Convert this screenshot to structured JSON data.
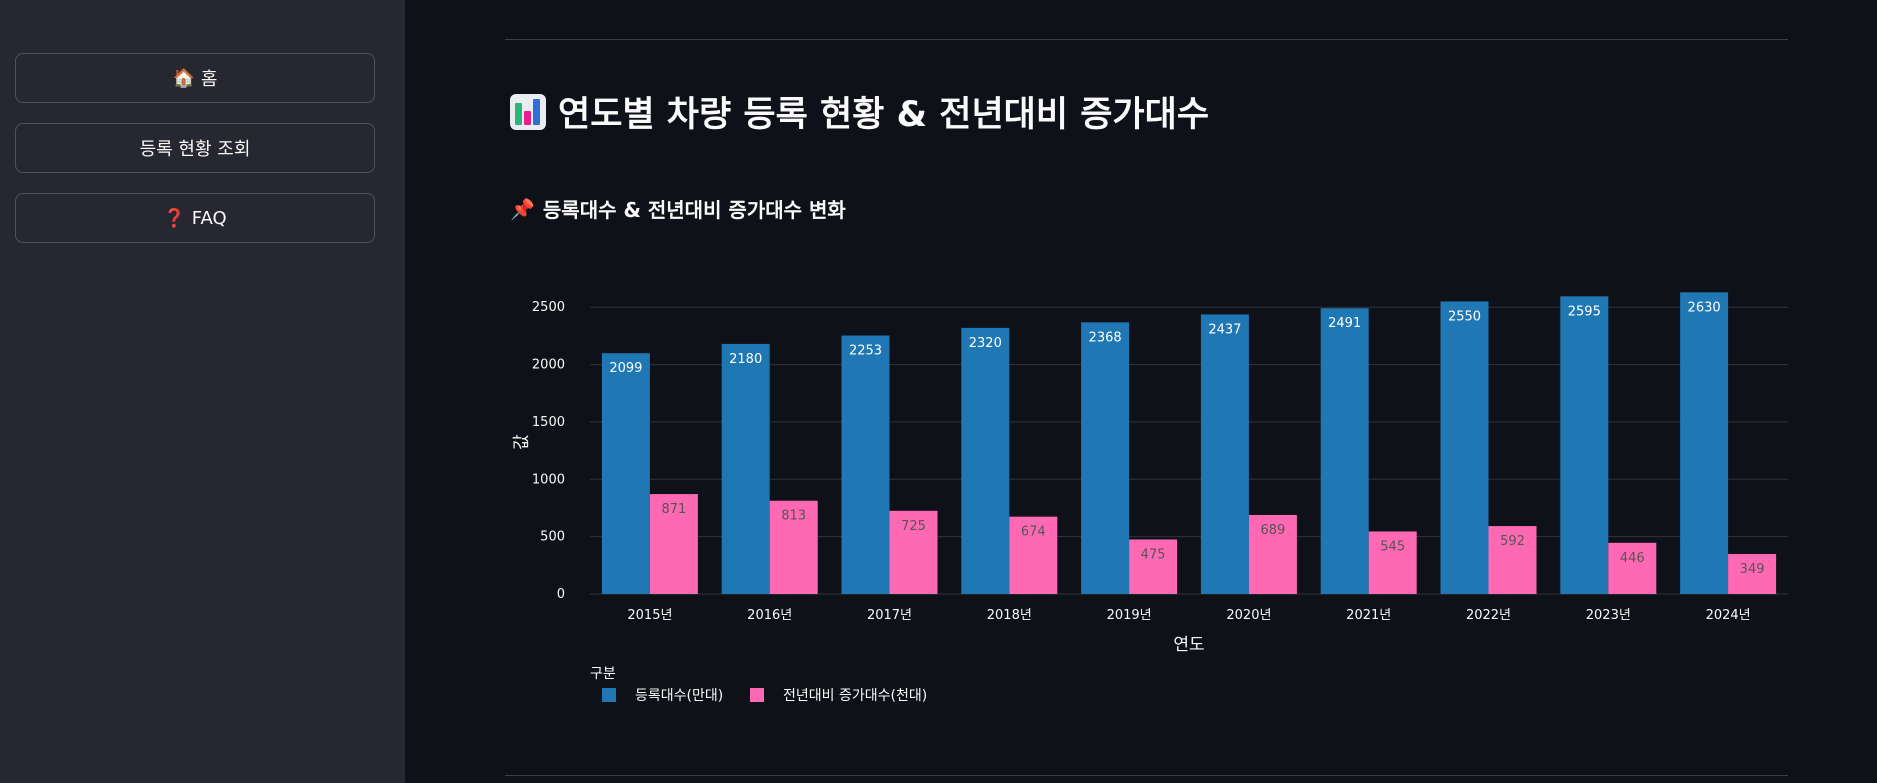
{
  "sidebar": {
    "items": [
      {
        "icon": "house-icon",
        "emoji": "🏠",
        "label": "홈"
      },
      {
        "icon": "",
        "emoji": "",
        "label": "등록 현황 조회"
      },
      {
        "icon": "question-mark-icon",
        "emoji": "❓",
        "label": "FAQ"
      }
    ]
  },
  "page": {
    "title": "연도별 차량 등록 현황 & 전년대비 증가대수",
    "title_icon": "bar-chart-icon",
    "section_title": "등록대수 & 전년대비 증가대수 변화",
    "section_icon": "pushpin-icon"
  },
  "colors": {
    "background": "#0e1117",
    "sidebar": "#262730",
    "series_registered": "#1f77b4",
    "series_increase": "#ff69b4"
  },
  "chart_data": {
    "type": "bar",
    "categories": [
      "2015년",
      "2016년",
      "2017년",
      "2018년",
      "2019년",
      "2020년",
      "2021년",
      "2022년",
      "2023년",
      "2024년"
    ],
    "series": [
      {
        "name": "등록대수(만대)",
        "values": [
          2099,
          2180,
          2253,
          2320,
          2368,
          2437,
          2491,
          2550,
          2595,
          2630
        ]
      },
      {
        "name": "전년대비 증가대수(천대)",
        "values": [
          871,
          813,
          725,
          674,
          475,
          689,
          545,
          592,
          446,
          349
        ]
      }
    ],
    "xlabel": "연도",
    "ylabel": "값",
    "ylim": [
      0,
      2650
    ],
    "yticks": [
      0,
      500,
      1000,
      1500,
      2000,
      2500
    ],
    "legend_title": "구분",
    "legend_position": "bottom-left",
    "grid": true
  }
}
